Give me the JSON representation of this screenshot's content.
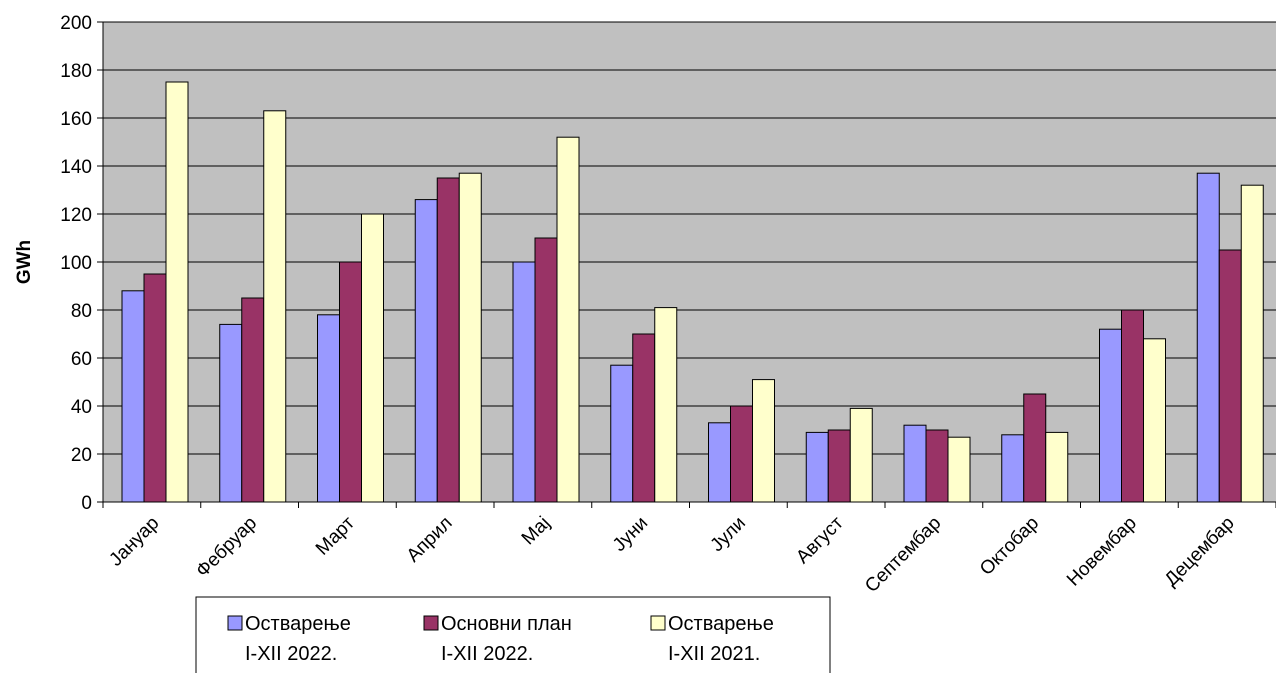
{
  "chart_data": {
    "type": "bar",
    "title": "",
    "xlabel": "",
    "ylabel": "GWh",
    "ylim": [
      0,
      200
    ],
    "yticks": [
      0,
      20,
      40,
      60,
      80,
      100,
      120,
      140,
      160,
      180,
      200
    ],
    "grid": true,
    "legend_position": "bottom",
    "plot_background": "#c0c0c0",
    "categories": [
      "Јануар",
      "Фебруар",
      "Март",
      "Април",
      "Мај",
      "Јуни",
      "Јули",
      "Август",
      "Септембар",
      "Октобар",
      "Новембар",
      "Децембар"
    ],
    "series": [
      {
        "name_line1": "Остварење",
        "name_line2": "I-XII 2022.",
        "color": "#9999ff",
        "values": [
          88,
          74,
          78,
          126,
          100,
          57,
          33,
          29,
          32,
          28,
          72,
          137
        ]
      },
      {
        "name_line1": "Основни план",
        "name_line2": "I-XII 2022.",
        "color": "#993366",
        "values": [
          95,
          85,
          100,
          135,
          110,
          70,
          40,
          30,
          30,
          45,
          80,
          105
        ]
      },
      {
        "name_line1": "Остварење",
        "name_line2": "I-XII 2021.",
        "color": "#ffffcc",
        "values": [
          175,
          163,
          120,
          137,
          152,
          81,
          51,
          39,
          27,
          29,
          68,
          132
        ]
      }
    ]
  }
}
